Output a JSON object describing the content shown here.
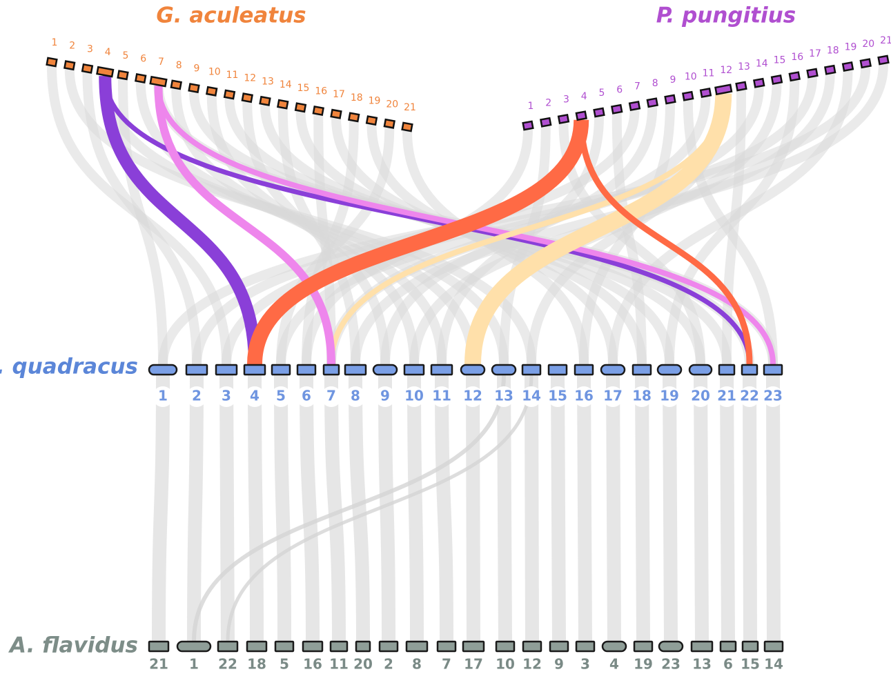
{
  "genomes": [
    {
      "name": "G. aculeatus",
      "chromosomes": [
        "1",
        "2",
        "3",
        "4",
        "5",
        "6",
        "7",
        "8",
        "9",
        "10",
        "11",
        "12",
        "13",
        "14",
        "15",
        "16",
        "17",
        "18",
        "19",
        "20",
        "21"
      ]
    },
    {
      "name": "P. pungitius",
      "chromosomes": [
        "1",
        "2",
        "3",
        "4",
        "5",
        "6",
        "7",
        "8",
        "9",
        "10",
        "11",
        "12",
        "13",
        "14",
        "15",
        "16",
        "17",
        "18",
        "19",
        "20",
        "21"
      ]
    },
    {
      "name": "A. quadracus",
      "chromosomes": [
        "1",
        "2",
        "3",
        "4",
        "5",
        "6",
        "7",
        "8",
        "9",
        "10",
        "11",
        "12",
        "13",
        "14",
        "15",
        "16",
        "17",
        "18",
        "19",
        "20",
        "21",
        "22",
        "23"
      ]
    },
    {
      "name": "A. flavidus",
      "chromosomes": [
        "21",
        "1",
        "22",
        "18",
        "5",
        "16",
        "11",
        "20",
        "2",
        "8",
        "7",
        "17",
        "10",
        "12",
        "9",
        "3",
        "4",
        "19",
        "23",
        "13",
        "6",
        "15",
        "14"
      ]
    }
  ]
}
